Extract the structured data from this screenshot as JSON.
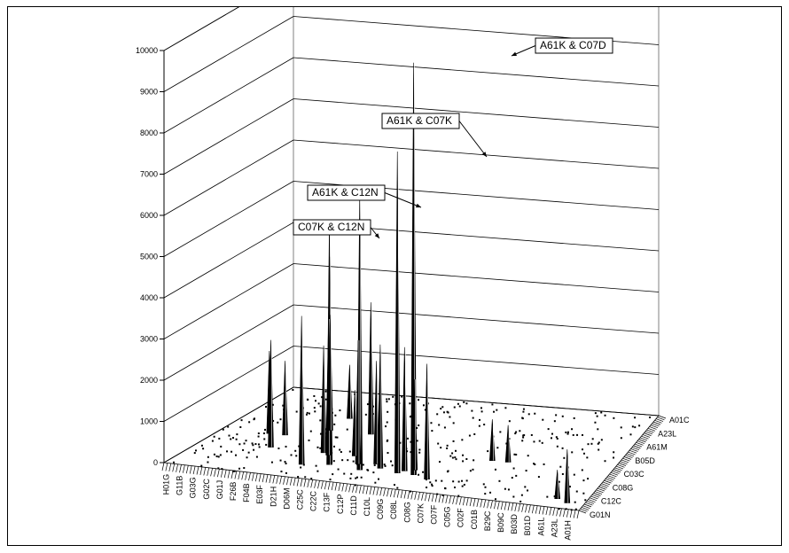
{
  "chart_data": {
    "type": "3d-bar",
    "title": "",
    "xlabel": "",
    "ylabel": "",
    "zlim": [
      0,
      10000
    ],
    "z_ticks": [
      0,
      1000,
      2000,
      3000,
      4000,
      5000,
      6000,
      7000,
      8000,
      9000,
      10000
    ],
    "x_tick_labels": [
      "H01G",
      "G11B",
      "G03G",
      "G02C",
      "G01J",
      "F26B",
      "F04B",
      "E03F",
      "D21H",
      "D06M",
      "C25C",
      "C22C",
      "C13F",
      "C12P",
      "C11D",
      "C10L",
      "C09G",
      "C08L",
      "C08G",
      "C07K",
      "C07F",
      "C05G",
      "C02F",
      "C01B",
      "B29C",
      "B09C",
      "B03D",
      "B01D",
      "A61L",
      "A23L",
      "A01H"
    ],
    "y_tick_labels": [
      "A01C",
      "A23L",
      "A61M",
      "B05D",
      "C03C",
      "C08G",
      "C12C",
      "G01N"
    ],
    "grid": true,
    "annotations": [
      {
        "label": "A61K & C07D",
        "value": 10000
      },
      {
        "label": "A61K & C07K",
        "value": 7800
      },
      {
        "label": "A61K & C12N",
        "value": 6700
      },
      {
        "label": "C07K & C12N",
        "value": 5900
      }
    ],
    "peaks": [
      {
        "name": "A61K & C07D",
        "x": 0.56,
        "y": 0.17,
        "value": 10000
      },
      {
        "name": "A61K & C07K",
        "x": 0.52,
        "y": 0.17,
        "value": 7800
      },
      {
        "name": "A61K & C12N",
        "x": 0.43,
        "y": 0.16,
        "value": 6700
      },
      {
        "name": "C07K & C12N",
        "x": 0.35,
        "y": 0.18,
        "value": 5900
      },
      {
        "x": 0.345,
        "y": 0.2,
        "value": 5000
      },
      {
        "x": 0.32,
        "y": 0.28,
        "value": 3300
      },
      {
        "x": 0.302,
        "y": 0.3,
        "value": 2600
      },
      {
        "x": 0.29,
        "y": 0.15,
        "value": 3600
      },
      {
        "x": 0.25,
        "y": 0.7,
        "value": 1300
      },
      {
        "x": 0.245,
        "y": 0.55,
        "value": 2800
      },
      {
        "x": 0.35,
        "y": 0.55,
        "value": 3200
      },
      {
        "x": 0.47,
        "y": 0.2,
        "value": 3000
      },
      {
        "x": 0.53,
        "y": 0.2,
        "value": 3000
      },
      {
        "x": 0.55,
        "y": 0.22,
        "value": 2200
      },
      {
        "x": 0.45,
        "y": 0.24,
        "value": 2500
      },
      {
        "x": 0.41,
        "y": 0.22,
        "value": 3000
      },
      {
        "x": 0.38,
        "y": 0.3,
        "value": 1600
      },
      {
        "x": 0.6,
        "y": 0.14,
        "value": 2800
      },
      {
        "x": 0.96,
        "y": 0.06,
        "value": 1300
      },
      {
        "x": 0.93,
        "y": 0.09,
        "value": 700
      },
      {
        "x": 0.7,
        "y": 0.4,
        "value": 1000
      },
      {
        "x": 0.74,
        "y": 0.4,
        "value": 900
      },
      {
        "x": 0.12,
        "y": 0.45,
        "value": 2000
      },
      {
        "x": 0.17,
        "y": 0.3,
        "value": 2600
      },
      {
        "x": 0.16,
        "y": 0.45,
        "value": 1800
      }
    ]
  }
}
